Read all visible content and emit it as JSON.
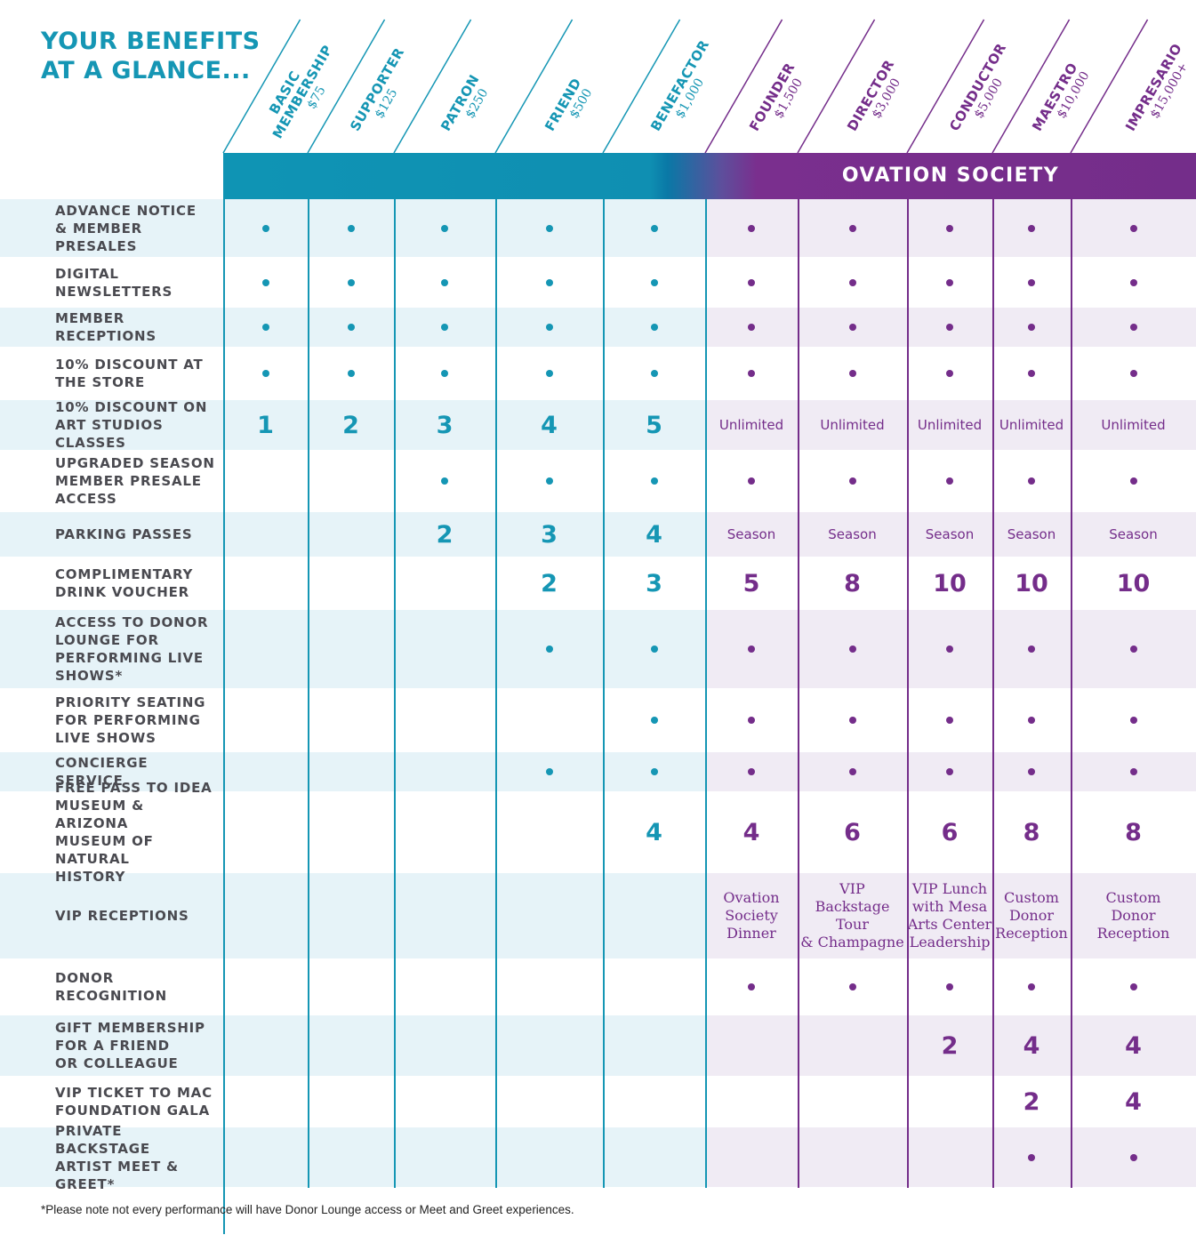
{
  "title": {
    "line1": "YOUR BENEFITS",
    "line2": "AT A GLANCE..."
  },
  "banner": "OVATION SOCIETY",
  "colors": {
    "teal": "#1596b4",
    "purple": "#742d8a",
    "label": "#4a4a50",
    "teal_row": "#e6f3f8",
    "purple_row": "#f0ebf4"
  },
  "tiers": [
    {
      "name_line1": "BASIC",
      "name_line2": "MEMBERSHIP",
      "price": "$75",
      "group": "member"
    },
    {
      "name_line1": "SUPPORTER",
      "name_line2": "",
      "price": "$125",
      "group": "member"
    },
    {
      "name_line1": "PATRON",
      "name_line2": "",
      "price": "$250",
      "group": "member"
    },
    {
      "name_line1": "FRIEND",
      "name_line2": "",
      "price": "$500",
      "group": "member"
    },
    {
      "name_line1": "BENEFACTOR",
      "name_line2": "",
      "price": "$1,000",
      "group": "member"
    },
    {
      "name_line1": "FOUNDER",
      "name_line2": "",
      "price": "$1,500",
      "group": "ovation"
    },
    {
      "name_line1": "DIRECTOR",
      "name_line2": "",
      "price": "$3,000",
      "group": "ovation"
    },
    {
      "name_line1": "CONDUCTOR",
      "name_line2": "",
      "price": "$5,000",
      "group": "ovation"
    },
    {
      "name_line1": "MAESTRO",
      "name_line2": "",
      "price": "$10,000",
      "group": "ovation"
    },
    {
      "name_line1": "IMPRESARIO",
      "name_line2": "",
      "price": "$15,000+",
      "group": "ovation"
    }
  ],
  "benefits": [
    {
      "label": "ADVANCE NOTICE\n& MEMBER PRESALES",
      "shaded": true,
      "values": [
        "•",
        "•",
        "•",
        "•",
        "•",
        "•",
        "•",
        "•",
        "•",
        "•"
      ]
    },
    {
      "label": "DIGITAL\nNEWSLETTERS",
      "shaded": false,
      "values": [
        "•",
        "•",
        "•",
        "•",
        "•",
        "•",
        "•",
        "•",
        "•",
        "•"
      ]
    },
    {
      "label": "MEMBER RECEPTIONS",
      "shaded": true,
      "values": [
        "•",
        "•",
        "•",
        "•",
        "•",
        "•",
        "•",
        "•",
        "•",
        "•"
      ]
    },
    {
      "label": "10% DISCOUNT AT\nTHE STORE",
      "shaded": false,
      "values": [
        "•",
        "•",
        "•",
        "•",
        "•",
        "•",
        "•",
        "•",
        "•",
        "•"
      ]
    },
    {
      "label": "10% DISCOUNT ON\nART STUDIOS CLASSES",
      "shaded": true,
      "values": [
        "1",
        "2",
        "3",
        "4",
        "5",
        "Unlimited",
        "Unlimited",
        "Unlimited",
        "Unlimited",
        "Unlimited"
      ]
    },
    {
      "label": "UPGRADED SEASON\nMEMBER PRESALE\nACCESS",
      "shaded": false,
      "values": [
        "",
        "",
        "•",
        "•",
        "•",
        "•",
        "•",
        "•",
        "•",
        "•"
      ]
    },
    {
      "label": "PARKING PASSES",
      "shaded": true,
      "values": [
        "",
        "",
        "2",
        "3",
        "4",
        "Season",
        "Season",
        "Season",
        "Season",
        "Season"
      ]
    },
    {
      "label": "COMPLIMENTARY\nDRINK VOUCHER",
      "shaded": false,
      "values": [
        "",
        "",
        "",
        "2",
        "3",
        "5",
        "8",
        "10",
        "10",
        "10"
      ]
    },
    {
      "label": "ACCESS TO DONOR\nLOUNGE FOR\nPERFORMING LIVE\nSHOWS*",
      "shaded": true,
      "values": [
        "",
        "",
        "",
        "•",
        "•",
        "•",
        "•",
        "•",
        "•",
        "•"
      ]
    },
    {
      "label": "PRIORITY SEATING\nFOR PERFORMING\nLIVE SHOWS",
      "shaded": false,
      "values": [
        "",
        "",
        "",
        "",
        "•",
        "•",
        "•",
        "•",
        "•",
        "•"
      ]
    },
    {
      "label": "CONCIERGE SERVICE",
      "shaded": true,
      "values": [
        "",
        "",
        "",
        "•",
        "•",
        "•",
        "•",
        "•",
        "•",
        "•"
      ]
    },
    {
      "label": "FREE PASS TO IDEA\nMUSEUM & ARIZONA\nMUSEUM OF NATURAL\nHISTORY",
      "shaded": false,
      "values": [
        "",
        "",
        "",
        "",
        "4",
        "4",
        "6",
        "6",
        "8",
        "8"
      ]
    },
    {
      "label": "VIP RECEPTIONS",
      "shaded": true,
      "values": [
        "",
        "",
        "",
        "",
        "",
        "Ovation\nSociety\nDinner",
        "VIP\nBackstage Tour\n& Champagne",
        "VIP Lunch\nwith Mesa\nArts Center\nLeadership",
        "Custom\nDonor\nReception",
        "Custom\nDonor\nReception"
      ]
    },
    {
      "label": "DONOR\nRECOGNITION",
      "shaded": false,
      "values": [
        "",
        "",
        "",
        "",
        "",
        "•",
        "•",
        "•",
        "•",
        "•"
      ]
    },
    {
      "label": "GIFT MEMBERSHIP\nFOR A FRIEND\nOR COLLEAGUE",
      "shaded": true,
      "values": [
        "",
        "",
        "",
        "",
        "",
        "",
        "",
        "2",
        "4",
        "4"
      ]
    },
    {
      "label": "VIP TICKET TO MAC\nFOUNDATION GALA",
      "shaded": false,
      "values": [
        "",
        "",
        "",
        "",
        "",
        "",
        "",
        "",
        "2",
        "4"
      ]
    },
    {
      "label": "PRIVATE BACKSTAGE\nARTIST MEET & GREET*",
      "shaded": true,
      "values": [
        "",
        "",
        "",
        "",
        "",
        "",
        "",
        "",
        "•",
        "•"
      ]
    }
  ],
  "footnote": "*Please note not every performance will have Donor Lounge access or Meet and Greet experiences."
}
